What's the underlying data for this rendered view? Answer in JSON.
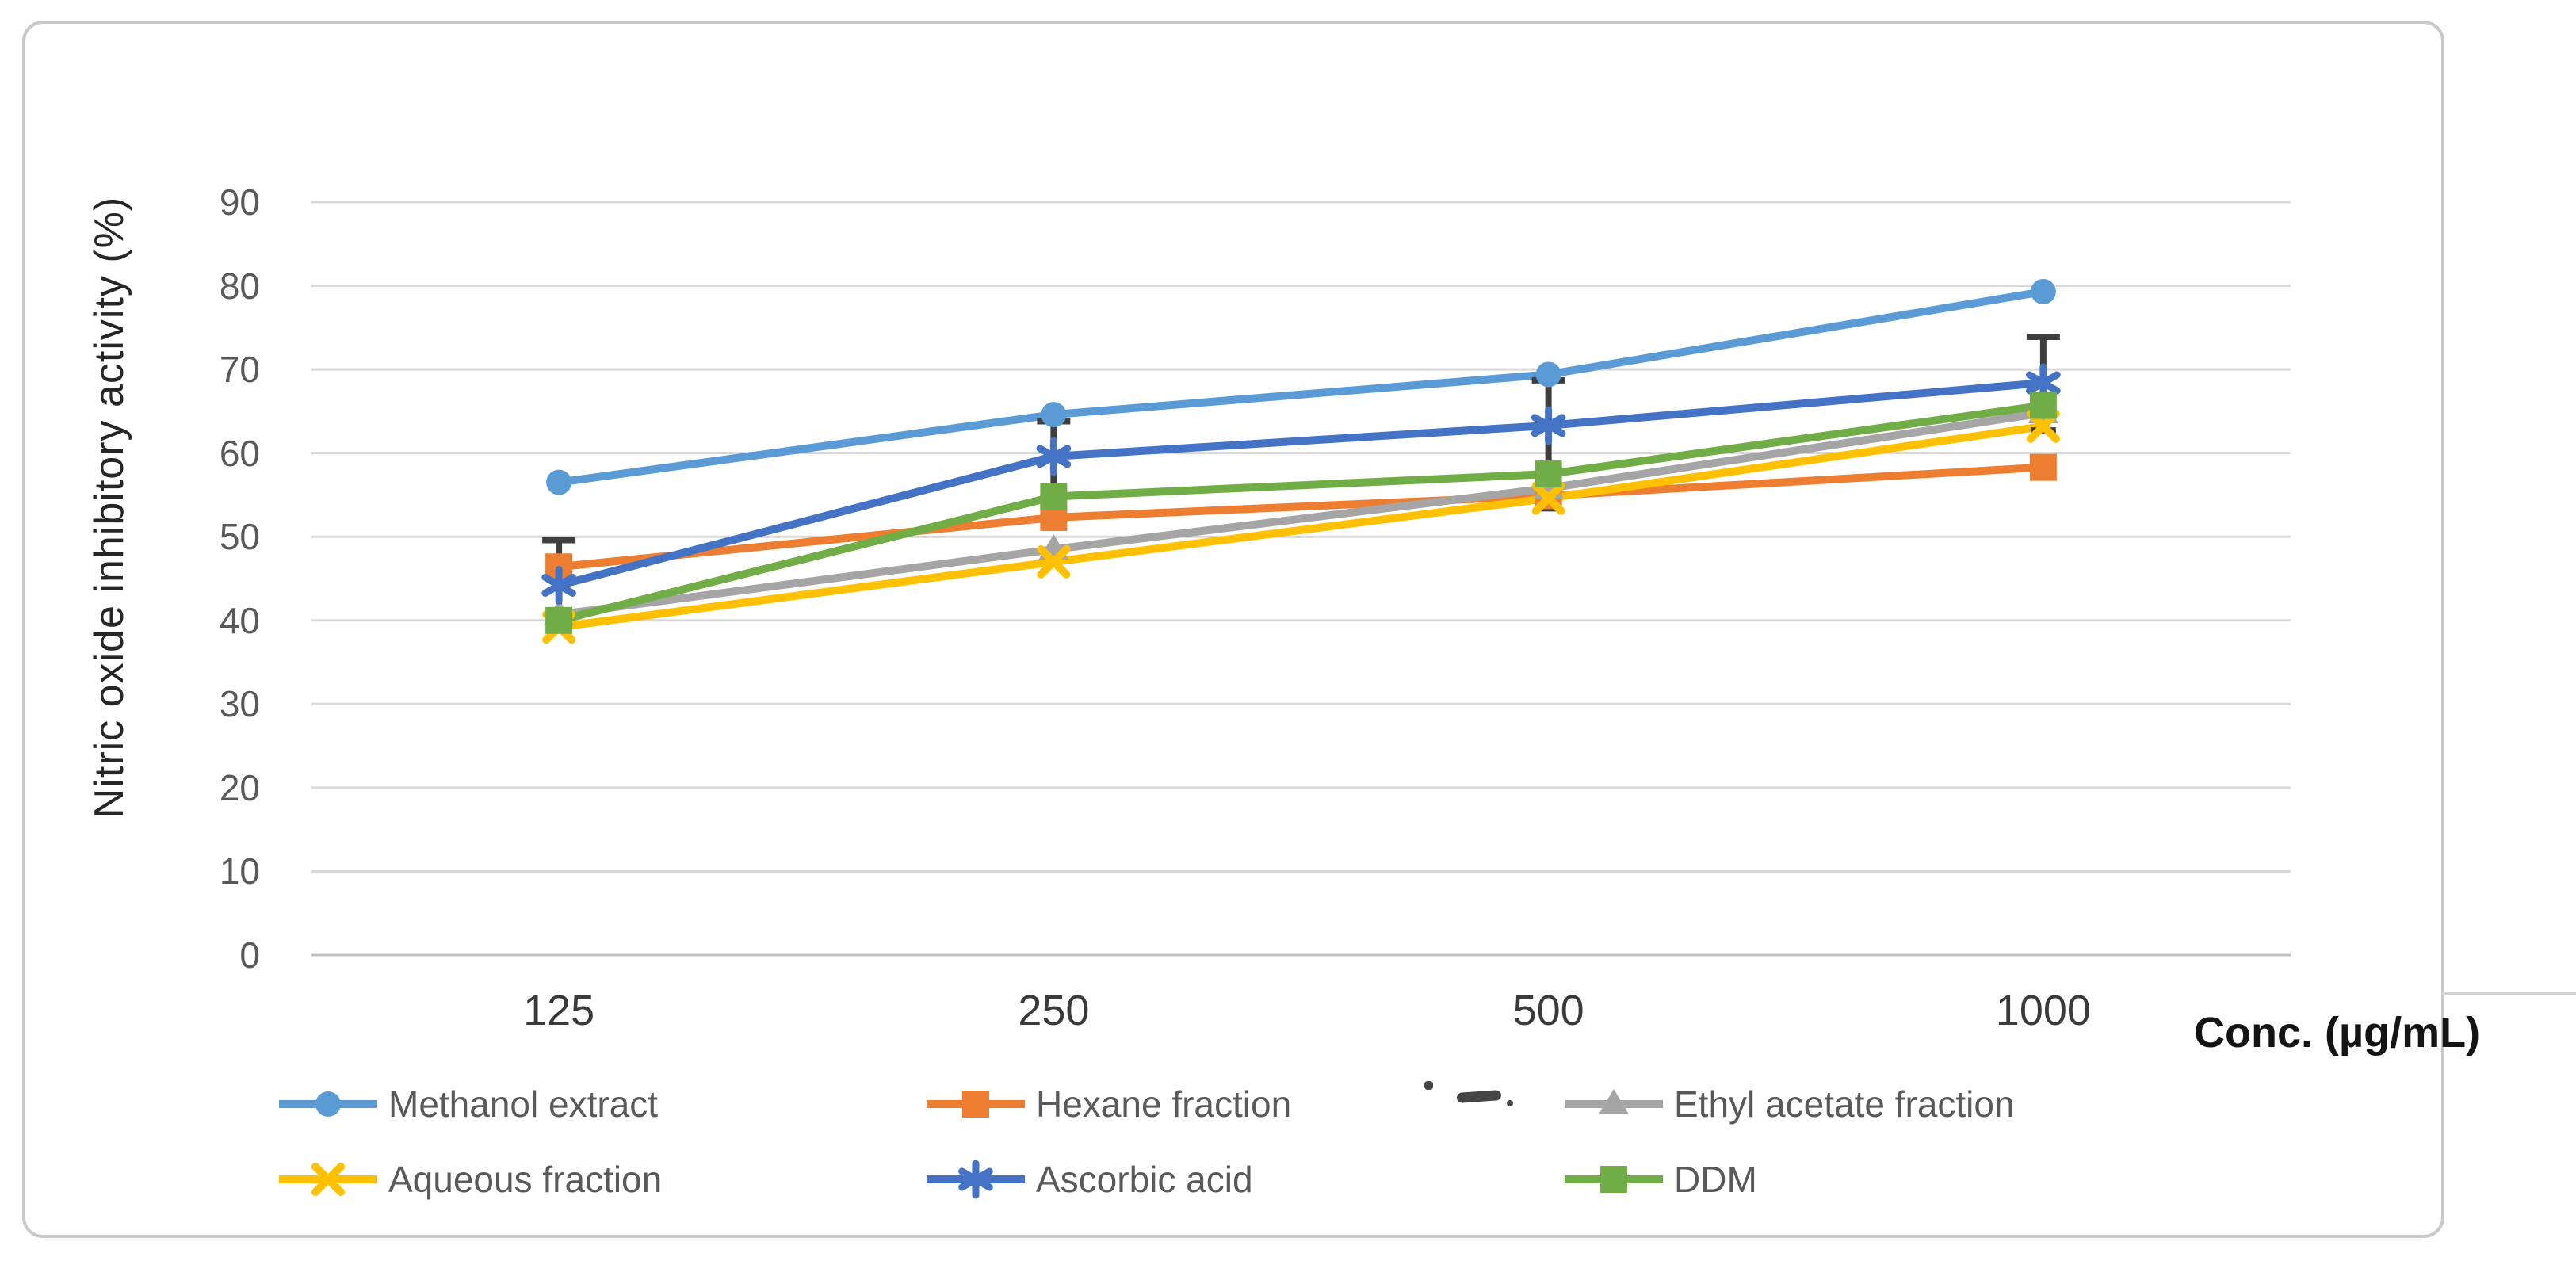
{
  "chart_data": {
    "type": "line",
    "title": "",
    "xlabel": "Conc. (µg/mL)",
    "ylabel": "Nitric oxide inhibitory activity (%)",
    "x_categories": [
      "125",
      "250",
      "500",
      "1000"
    ],
    "x_values_numeric": [
      125,
      250,
      500,
      1000
    ],
    "y_ticks": [
      90,
      80,
      70,
      60,
      50,
      40,
      30,
      20,
      10,
      0
    ],
    "ylim": [
      0,
      95
    ],
    "grid": "horizontal",
    "legend_position": "bottom",
    "series": [
      {
        "name": "Methanol extract",
        "color": "#5B9BD5",
        "marker": "circle",
        "values": [
          56.5,
          64.6,
          69.4,
          79.3
        ]
      },
      {
        "name": "Hexane fraction",
        "color": "#ED7D31",
        "marker": "square",
        "values": [
          46.4,
          52.3,
          54.9,
          58.3
        ]
      },
      {
        "name": "Ethyl acetate fraction",
        "color": "#A5A5A5",
        "marker": "triangle",
        "values": [
          40.7,
          48.5,
          55.8,
          64.8
        ]
      },
      {
        "name": "Aqueous fraction",
        "color": "#FFC000",
        "marker": "x",
        "values": [
          39.2,
          47.0,
          54.6,
          63.2
        ]
      },
      {
        "name": "Ascorbic acid",
        "color": "#4472C4",
        "marker": "asterisk",
        "values": [
          44.2,
          59.6,
          63.3,
          68.4
        ]
      },
      {
        "name": "DDM",
        "color": "#70AD47",
        "marker": "square",
        "values": [
          40.0,
          54.8,
          57.5,
          65.7
        ]
      }
    ],
    "error_bars": [
      {
        "category_index": 0,
        "from": 49.6,
        "to": 40.2,
        "cap_top": true,
        "cap_bottom": false
      },
      {
        "category_index": 1,
        "from": 63.8,
        "to": 52.8,
        "cap_top": true,
        "cap_bottom": false
      },
      {
        "category_index": 2,
        "from": 68.7,
        "to": 53.4,
        "cap_top": true,
        "cap_bottom": true
      },
      {
        "category_index": 3,
        "from": 73.9,
        "to": 68.4,
        "cap_top": true,
        "cap_bottom": false
      },
      {
        "category_index": 3,
        "from": 65.7,
        "to": 62.7,
        "cap_top": false,
        "cap_bottom": true
      }
    ],
    "colors": {
      "gridline": "#d9d9d9",
      "baseline": "#c2c2c2",
      "error_bar": "#3f3f3f",
      "tick_label": "#595959",
      "border": "#c9c9c9"
    }
  },
  "legend_rows": [
    [
      0,
      1,
      2
    ],
    [
      3,
      4,
      5
    ]
  ]
}
